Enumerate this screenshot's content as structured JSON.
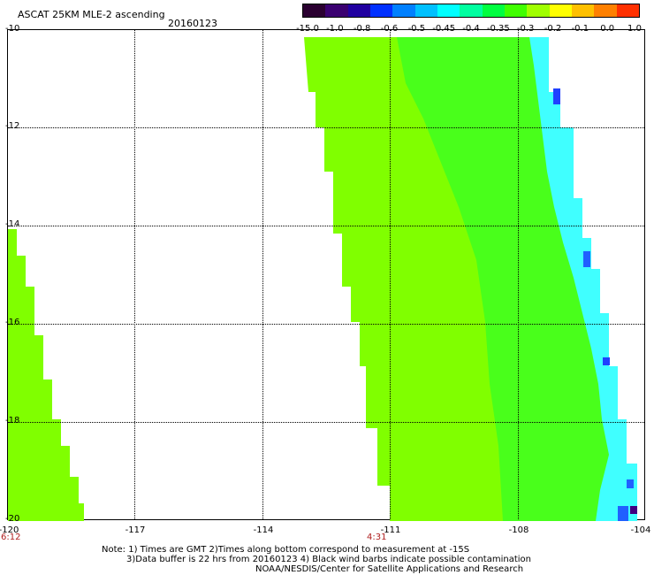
{
  "header": {
    "title": "ASCAT 25KM MLE-2 ascending",
    "date": "20160123"
  },
  "colorbar": {
    "labels": [
      "-15.0",
      "-1.0",
      "-0.8",
      "-0.6",
      "-0.5",
      "-0.45",
      "-0.4",
      "-0.35",
      "-0.3",
      "-0.2",
      "-0.1",
      "0.0",
      "1.0"
    ],
    "colors": [
      "#2a0030",
      "#3a0070",
      "#2000a0",
      "#0030ff",
      "#0080ff",
      "#00c0ff",
      "#00ffff",
      "#00ffa0",
      "#00ff40",
      "#40ff00",
      "#a0ff00",
      "#ffff00",
      "#ffc000",
      "#ff8000",
      "#ff3000"
    ]
  },
  "map": {
    "lat_labels": [
      "-10",
      "-12",
      "-14",
      "-16",
      "-18",
      "-20"
    ],
    "lon_labels": [
      "-120",
      "-117",
      "-114",
      "-111",
      "-108",
      "-104"
    ],
    "times": [
      "6:12",
      "4:31"
    ],
    "swath_color_main": "#80ff00",
    "swath_color_green": "#40ff20",
    "swath_color_cyan": "#40ffff",
    "swath_color_blue": "#2060ff"
  },
  "notes": {
    "line1": "Note: 1) Times are GMT 2)Times along bottom correspond to measurement at -15S",
    "line2": "3)Data buffer is 22 hrs from 20160123 4) Black wind barbs indicate possible contamination",
    "line3": "NOAA/NESDIS/Center for Satellite Applications and Research"
  }
}
